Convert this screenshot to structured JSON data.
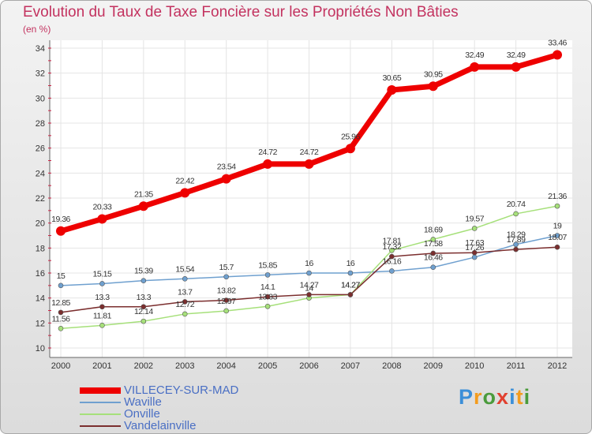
{
  "title": "Evolution du Taux de Taxe Foncière sur les Propriétés Non Bâties",
  "unit": "(en %)",
  "logo": {
    "text": "Proxiti",
    "letter_colors": [
      "#3c8fd8",
      "#f39c1e",
      "#4a9b3c",
      "#e1402f",
      "#3c8fd8",
      "#f39c1e",
      "#4a9b3c"
    ]
  },
  "chart_data": {
    "type": "line",
    "x": [
      "2000",
      "2001",
      "2002",
      "2003",
      "2004",
      "2005",
      "2006",
      "2007",
      "2008",
      "2009",
      "2010",
      "2011",
      "2012"
    ],
    "ylim": [
      10,
      34
    ],
    "yticks": [
      "10",
      "12",
      "14",
      "16",
      "18",
      "20",
      "22",
      "24",
      "26",
      "28",
      "30",
      "32",
      "34"
    ],
    "grid": true,
    "legend_position": "bottom-left",
    "series": [
      {
        "name": "VILLECEY-SUR-MAD",
        "color": "#ee0000",
        "values": [
          19.36,
          20.33,
          21.35,
          22.42,
          23.54,
          24.72,
          24.72,
          25.96,
          30.65,
          30.95,
          32.49,
          32.49,
          33.46
        ],
        "labels": [
          "19.36",
          "20.33",
          "21.35",
          "22.42",
          "23.54",
          "24.72",
          "24.72",
          "25.96",
          "30.65",
          "30.95",
          "32.49",
          "32.49",
          "33.46"
        ]
      },
      {
        "name": "Waville",
        "color": "#6fa0cf",
        "values": [
          15,
          15.15,
          15.39,
          15.54,
          15.7,
          15.85,
          16,
          16,
          16.16,
          16.46,
          17.26,
          18.29,
          19
        ],
        "labels": [
          "15",
          "15.15",
          "15.39",
          "15.54",
          "15.7",
          "15.85",
          "16",
          "16",
          "16.16",
          "16.46",
          "17.26",
          "18.29",
          "19"
        ]
      },
      {
        "name": "Onville",
        "color": "#a6e07a",
        "values": [
          11.56,
          11.81,
          12.14,
          12.72,
          12.97,
          13.33,
          14,
          14.27,
          17.81,
          18.69,
          19.57,
          20.74,
          21.36
        ],
        "labels": [
          "11.56",
          "11.81",
          "12.14",
          "12.72",
          "12.97",
          "13.33",
          "14",
          "14.27",
          "17.81",
          "18.69",
          "19.57",
          "20.74",
          "21.36"
        ]
      },
      {
        "name": "Vandelainville",
        "color": "#7b2e2e",
        "values": [
          12.85,
          13.3,
          13.3,
          13.7,
          13.82,
          14.1,
          14.27,
          14.27,
          17.32,
          17.58,
          17.63,
          17.89,
          18.07
        ],
        "labels": [
          "12.85",
          "13.3",
          "13.3",
          "13.7",
          "13.82",
          "14.1",
          "14.27",
          "14.27",
          "17.32",
          "17.58",
          "17.63",
          "17.89",
          "18.07"
        ]
      }
    ]
  }
}
